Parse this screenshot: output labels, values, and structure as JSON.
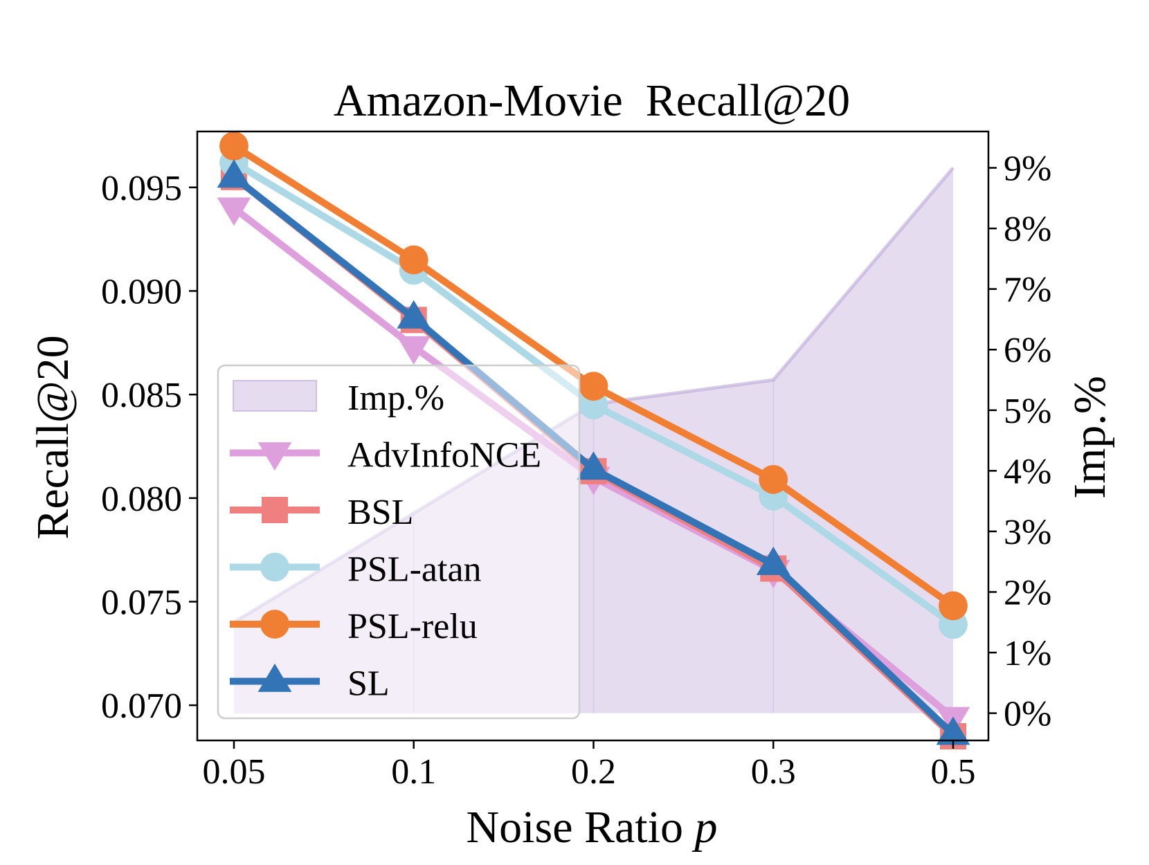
{
  "chart_data": {
    "type": "line",
    "title": "Amazon-Movie  Recall@20",
    "xlabel_text": "Noise Ratio ",
    "xlabel_var": "p",
    "ylabel": "Recall@20",
    "y2label": "Imp.%",
    "categories": [
      "0.05",
      "0.1",
      "0.2",
      "0.3",
      "0.5"
    ],
    "ylim": [
      0.0683,
      0.0977
    ],
    "yticks": [
      0.07,
      0.075,
      0.08,
      0.085,
      0.09,
      0.095
    ],
    "ytick_labels": [
      "0.070",
      "0.075",
      "0.080",
      "0.085",
      "0.090",
      "0.095"
    ],
    "y2lim": [
      -0.45,
      9.6
    ],
    "y2ticks": [
      0,
      1,
      2,
      3,
      4,
      5,
      6,
      7,
      8,
      9
    ],
    "y2tick_labels": [
      "0%",
      "1%",
      "2%",
      "3%",
      "4%",
      "5%",
      "6%",
      "7%",
      "8%",
      "9%"
    ],
    "improvement": {
      "name": "Imp.%",
      "values": [
        1.5,
        3.3,
        5.1,
        5.5,
        9.0
      ],
      "color": "#b7a2d6",
      "fill_color": "#e6dcf0"
    },
    "series": [
      {
        "name": "AdvInfoNCE",
        "values": [
          0.094,
          0.0873,
          0.081,
          0.0765,
          0.0694
        ],
        "color": "#dda0dd",
        "marker": "triangle-down"
      },
      {
        "name": "BSL",
        "values": [
          0.0955,
          0.0886,
          0.0813,
          0.0766,
          0.0685
        ],
        "color": "#f08080",
        "marker": "square"
      },
      {
        "name": "PSL-atan",
        "values": [
          0.0962,
          0.091,
          0.0845,
          0.0801,
          0.0739
        ],
        "color": "#add8e6",
        "marker": "circle"
      },
      {
        "name": "PSL-relu",
        "values": [
          0.097,
          0.0915,
          0.0854,
          0.0809,
          0.0748
        ],
        "color": "#f07f34",
        "marker": "circle"
      },
      {
        "name": "SL",
        "values": [
          0.0955,
          0.0887,
          0.0814,
          0.0768,
          0.0686
        ],
        "color": "#3274b6",
        "marker": "triangle-up"
      }
    ],
    "legend_position": "center-left"
  }
}
